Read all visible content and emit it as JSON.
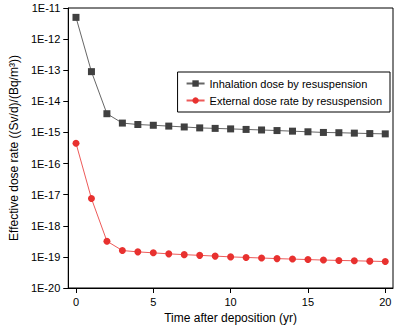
{
  "chart_data": {
    "type": "line",
    "x_label": "Time after deposition (yr)",
    "y_label": "Effective dose rate ((Sv/d)/(Bq/m³))",
    "x": [
      0,
      1,
      2,
      3,
      4,
      5,
      6,
      7,
      8,
      9,
      10,
      11,
      12,
      13,
      14,
      15,
      16,
      17,
      18,
      19,
      20
    ],
    "series": [
      {
        "name": "Inhalation dose by resuspension",
        "color": "#404040",
        "marker": "square",
        "line_style": "solid",
        "values": [
          5e-12,
          9e-14,
          4e-15,
          2e-15,
          1.8e-15,
          1.7e-15,
          1.6e-15,
          1.5e-15,
          1.4e-15,
          1.35e-15,
          1.3e-15,
          1.25e-15,
          1.2e-15,
          1.15e-15,
          1.1e-15,
          1.05e-15,
          1e-15,
          9.8e-16,
          9.5e-16,
          9.2e-16,
          9e-16
        ]
      },
      {
        "name": "External dose rate by resuspension",
        "color": "#e8312f",
        "marker": "circle",
        "line_style": "solid",
        "values": [
          4.5e-16,
          7.5e-18,
          3.2e-19,
          1.6e-19,
          1.45e-19,
          1.35e-19,
          1.25e-19,
          1.18e-19,
          1.12e-19,
          1.06e-19,
          1e-19,
          9.6e-20,
          9.2e-20,
          8.8e-20,
          8.5e-20,
          8.2e-20,
          7.9e-20,
          7.7e-20,
          7.5e-20,
          7.3e-20,
          7.1e-20
        ]
      }
    ],
    "xlim": [
      -0.5,
      20.5
    ],
    "xticks": [
      0,
      5,
      10,
      15,
      20
    ],
    "ylim": [
      1e-20,
      1e-11
    ],
    "yticks": [
      {
        "value": 1e-20,
        "label": "1E-20"
      },
      {
        "value": 1e-19,
        "label": "1E-19"
      },
      {
        "value": 1e-18,
        "label": "1E-18"
      },
      {
        "value": 1e-17,
        "label": "1E-17"
      },
      {
        "value": 1e-16,
        "label": "1E-16"
      },
      {
        "value": 1e-15,
        "label": "1E-15"
      },
      {
        "value": 1e-14,
        "label": "1E-14"
      },
      {
        "value": 1e-13,
        "label": "1E-13"
      },
      {
        "value": 1e-12,
        "label": "1E-12"
      },
      {
        "value": 1e-11,
        "label": "1E-11"
      }
    ],
    "log": "y",
    "grid": false,
    "legend": "upper right"
  }
}
